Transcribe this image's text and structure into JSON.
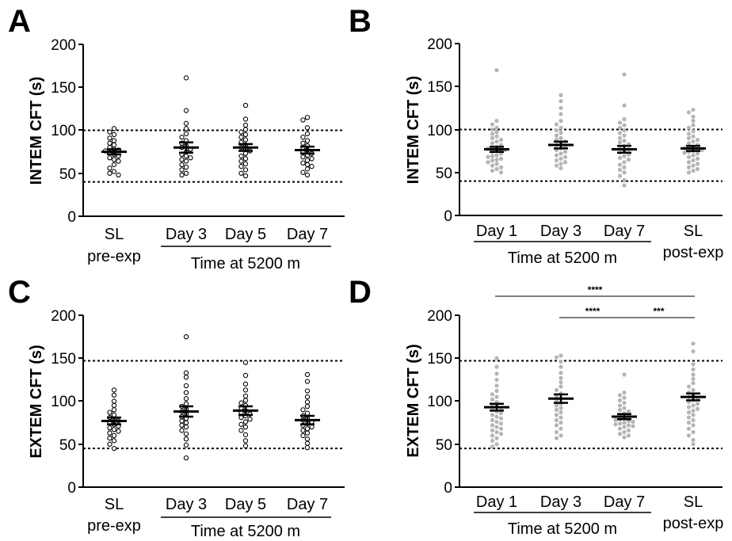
{
  "panels": [
    {
      "id": "A",
      "label": "A",
      "ylabel": "INTEM CFT (s)",
      "group_label": "Time at 5200 m",
      "categories": [
        {
          "top": "SL",
          "bottom": "pre-exp"
        },
        {
          "top": "Day 3",
          "bottom": ""
        },
        {
          "top": "Day 5",
          "bottom": ""
        },
        {
          "top": "Day 7",
          "bottom": ""
        }
      ],
      "yticks": [
        "0",
        "50",
        "100",
        "150",
        "200"
      ]
    },
    {
      "id": "B",
      "label": "B",
      "ylabel": "INTEM CFT (s)",
      "group_label": "Time at 5200 m",
      "categories": [
        {
          "top": "Day 1",
          "bottom": ""
        },
        {
          "top": "Day 3",
          "bottom": ""
        },
        {
          "top": "Day 7",
          "bottom": ""
        },
        {
          "top": "SL",
          "bottom": "post-exp"
        }
      ],
      "yticks": [
        "0",
        "50",
        "100",
        "150",
        "200"
      ]
    },
    {
      "id": "C",
      "label": "C",
      "ylabel": "EXTEM CFT (s)",
      "group_label": "Time at 5200 m",
      "categories": [
        {
          "top": "SL",
          "bottom": "pre-exp"
        },
        {
          "top": "Day 3",
          "bottom": ""
        },
        {
          "top": "Day 5",
          "bottom": ""
        },
        {
          "top": "Day 7",
          "bottom": ""
        }
      ],
      "yticks": [
        "0",
        "50",
        "100",
        "150",
        "200"
      ]
    },
    {
      "id": "D",
      "label": "D",
      "ylabel": "EXTEM CFT (s)",
      "group_label": "Time at 5200 m",
      "categories": [
        {
          "top": "Day 1",
          "bottom": ""
        },
        {
          "top": "Day 3",
          "bottom": ""
        },
        {
          "top": "Day 7",
          "bottom": ""
        },
        {
          "top": "SL",
          "bottom": "post-exp"
        }
      ],
      "yticks": [
        "0",
        "50",
        "100",
        "150",
        "200"
      ]
    }
  ],
  "colors": {
    "open_marker": "#000000",
    "grey_marker": "#b5b5b5",
    "line": "#000000"
  },
  "chart_data": [
    {
      "panel": "A",
      "type": "scatter",
      "marker": "open-circle",
      "title": "",
      "ylabel": "INTEM CFT (s)",
      "ylim": [
        0,
        200
      ],
      "reference_lines": [
        100,
        40
      ],
      "categories": [
        "SL pre-exp",
        "Day 3",
        "Day 5",
        "Day 7"
      ],
      "means": [
        75,
        80,
        80,
        77
      ],
      "sem": [
        3,
        6,
        4,
        4
      ],
      "points": [
        [
          102,
          98,
          95,
          91,
          88,
          85,
          83,
          80,
          78,
          77,
          76,
          74,
          72,
          70,
          68,
          66,
          64,
          60,
          56,
          52,
          50,
          48
        ],
        [
          161,
          123,
          108,
          102,
          96,
          92,
          88,
          85,
          82,
          80,
          78,
          75,
          72,
          70,
          68,
          66,
          64,
          60,
          57,
          54,
          50,
          48
        ],
        [
          129,
          113,
          106,
          101,
          98,
          95,
          92,
          89,
          86,
          83,
          80,
          78,
          76,
          73,
          70,
          67,
          64,
          61,
          58,
          54,
          50,
          47
        ],
        [
          115,
          112,
          103,
          96,
          92,
          88,
          85,
          82,
          80,
          77,
          75,
          73,
          71,
          69,
          67,
          65,
          62,
          60,
          58,
          55,
          51,
          48
        ]
      ]
    },
    {
      "panel": "B",
      "type": "scatter",
      "marker": "grey-dot",
      "title": "",
      "ylabel": "INTEM CFT (s)",
      "ylim": [
        0,
        200
      ],
      "reference_lines": [
        100,
        40
      ],
      "categories": [
        "Day 1",
        "Day 3",
        "Day 7",
        "SL post-exp"
      ],
      "means": [
        77,
        82,
        77,
        78
      ],
      "sem": [
        3,
        4,
        4,
        3
      ],
      "points": [
        [
          169,
          110,
          106,
          102,
          100,
          97,
          95,
          92,
          90,
          88,
          86,
          84,
          82,
          80,
          79,
          78,
          77,
          76,
          75,
          74,
          72,
          70,
          69,
          68,
          66,
          65,
          64,
          62,
          60,
          58,
          56,
          54,
          52,
          50
        ],
        [
          140,
          133,
          125,
          118,
          110,
          106,
          102,
          99,
          96,
          93,
          90,
          88,
          86,
          84,
          82,
          80,
          78,
          76,
          74,
          72,
          70,
          68,
          66,
          64,
          62,
          60,
          58,
          55
        ],
        [
          164,
          128,
          112,
          108,
          105,
          102,
          99,
          96,
          93,
          90,
          87,
          85,
          83,
          81,
          79,
          77,
          75,
          73,
          71,
          69,
          67,
          65,
          62,
          59,
          56,
          53,
          50,
          46,
          41,
          35
        ],
        [
          123,
          120,
          115,
          110,
          105,
          102,
          98,
          95,
          92,
          90,
          88,
          86,
          84,
          82,
          80,
          79,
          78,
          77,
          76,
          75,
          74,
          73,
          72,
          70,
          68,
          66,
          64,
          62,
          60,
          58,
          56,
          54,
          52,
          50
        ]
      ]
    },
    {
      "panel": "C",
      "type": "scatter",
      "marker": "open-circle",
      "title": "",
      "ylabel": "EXTEM CFT (s)",
      "ylim": [
        0,
        200
      ],
      "reference_lines": [
        147,
        45
      ],
      "categories": [
        "SL pre-exp",
        "Day 3",
        "Day 5",
        "Day 7"
      ],
      "means": [
        77,
        88,
        89,
        78
      ],
      "sem": [
        4,
        6,
        5,
        5
      ],
      "points": [
        [
          113,
          107,
          100,
          95,
          90,
          87,
          84,
          81,
          79,
          77,
          75,
          73,
          71,
          69,
          67,
          65,
          63,
          60,
          57,
          54,
          50,
          45
        ],
        [
          175,
          133,
          128,
          118,
          110,
          103,
          97,
          94,
          91,
          88,
          85,
          82,
          80,
          77,
          75,
          72,
          70,
          66,
          62,
          56,
          49,
          34
        ],
        [
          145,
          130,
          120,
          113,
          106,
          101,
          98,
          95,
          92,
          89,
          87,
          85,
          83,
          81,
          79,
          76,
          73,
          70,
          66,
          61,
          54,
          48
        ],
        [
          131,
          123,
          112,
          105,
          99,
          94,
          90,
          86,
          83,
          80,
          78,
          76,
          74,
          72,
          70,
          68,
          66,
          63,
          60,
          56,
          51,
          46
        ]
      ]
    },
    {
      "panel": "D",
      "type": "scatter",
      "marker": "grey-dot",
      "title": "",
      "ylabel": "EXTEM CFT (s)",
      "ylim": [
        0,
        200
      ],
      "reference_lines": [
        147,
        45
      ],
      "categories": [
        "Day 1",
        "Day 3",
        "Day 7",
        "SL post-exp"
      ],
      "means": [
        93,
        103,
        82,
        105
      ],
      "sem": [
        4,
        5,
        3,
        4
      ],
      "points": [
        [
          150,
          140,
          132,
          125,
          118,
          112,
          108,
          105,
          102,
          99,
          96,
          94,
          92,
          90,
          88,
          86,
          84,
          82,
          80,
          78,
          76,
          74,
          72,
          70,
          68,
          66,
          64,
          62,
          60,
          57,
          54,
          50,
          47
        ],
        [
          153,
          151,
          146,
          140,
          133,
          127,
          122,
          117,
          113,
          109,
          106,
          103,
          100,
          97,
          95,
          92,
          90,
          87,
          84,
          81,
          78,
          75,
          72,
          68,
          64,
          60,
          57
        ],
        [
          131,
          110,
          107,
          104,
          101,
          98,
          95,
          92,
          90,
          88,
          86,
          84,
          82,
          80,
          79,
          78,
          77,
          76,
          75,
          74,
          73,
          72,
          71,
          70,
          68,
          66,
          64,
          62,
          60,
          58
        ],
        [
          167,
          158,
          143,
          137,
          131,
          126,
          121,
          117,
          113,
          110,
          107,
          105,
          103,
          101,
          99,
          97,
          95,
          93,
          91,
          89,
          87,
          84,
          81,
          78,
          75,
          72,
          68,
          64,
          60,
          55,
          50
        ]
      ],
      "significance": [
        {
          "from": "Day 1",
          "to": "SL post-exp",
          "label": "****"
        },
        {
          "from": "Day 3",
          "to": "Day 7",
          "label": "****"
        },
        {
          "from": "Day 7",
          "to": "SL post-exp",
          "label": "***"
        }
      ]
    }
  ]
}
